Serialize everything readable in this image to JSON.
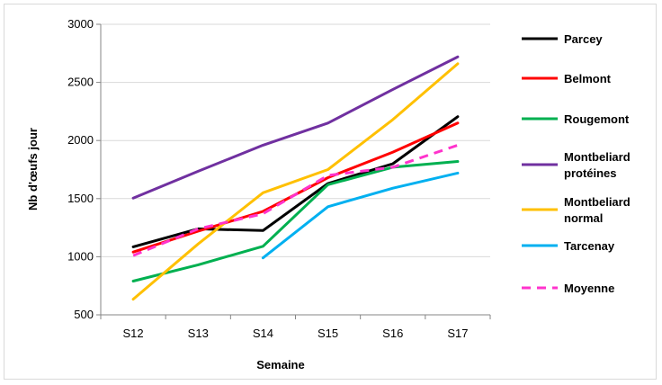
{
  "chart_data": {
    "type": "line",
    "xlabel": "Semaine",
    "ylabel": "Nb d'œufs jour",
    "categories": [
      "S12",
      "S13",
      "S14",
      "S15",
      "S16",
      "S17"
    ],
    "ylim": [
      500,
      3000
    ],
    "yticks": [
      500,
      1000,
      1500,
      2000,
      2500,
      3000
    ],
    "grid": "horizontal",
    "legend_position": "right",
    "series": [
      {
        "name": "Parcey",
        "color": "#000000",
        "dashed": false,
        "values": [
          1085,
          1240,
          1225,
          1630,
          1800,
          2205
        ]
      },
      {
        "name": "Belmont",
        "color": "#ff0000",
        "dashed": false,
        "values": [
          1040,
          1220,
          1390,
          1680,
          1900,
          2150
        ]
      },
      {
        "name": "Rougemont",
        "color": "#00b050",
        "dashed": false,
        "values": [
          790,
          930,
          1090,
          1620,
          1770,
          1820
        ]
      },
      {
        "name": "Montbeliard protéines",
        "color": "#7030a0",
        "dashed": false,
        "values": [
          1505,
          1735,
          1960,
          2150,
          2440,
          2720
        ]
      },
      {
        "name": "Montbeliard normal",
        "color": "#ffc000",
        "dashed": false,
        "values": [
          635,
          1110,
          1550,
          1750,
          2180,
          2660
        ]
      },
      {
        "name": "Tarcenay",
        "color": "#00b0f0",
        "dashed": false,
        "values": [
          null,
          null,
          990,
          1430,
          1590,
          1720
        ]
      },
      {
        "name": "Moyenne",
        "color": "#ff33cc",
        "dashed": true,
        "values": [
          1010,
          1240,
          1370,
          1700,
          1770,
          1960
        ]
      }
    ]
  }
}
